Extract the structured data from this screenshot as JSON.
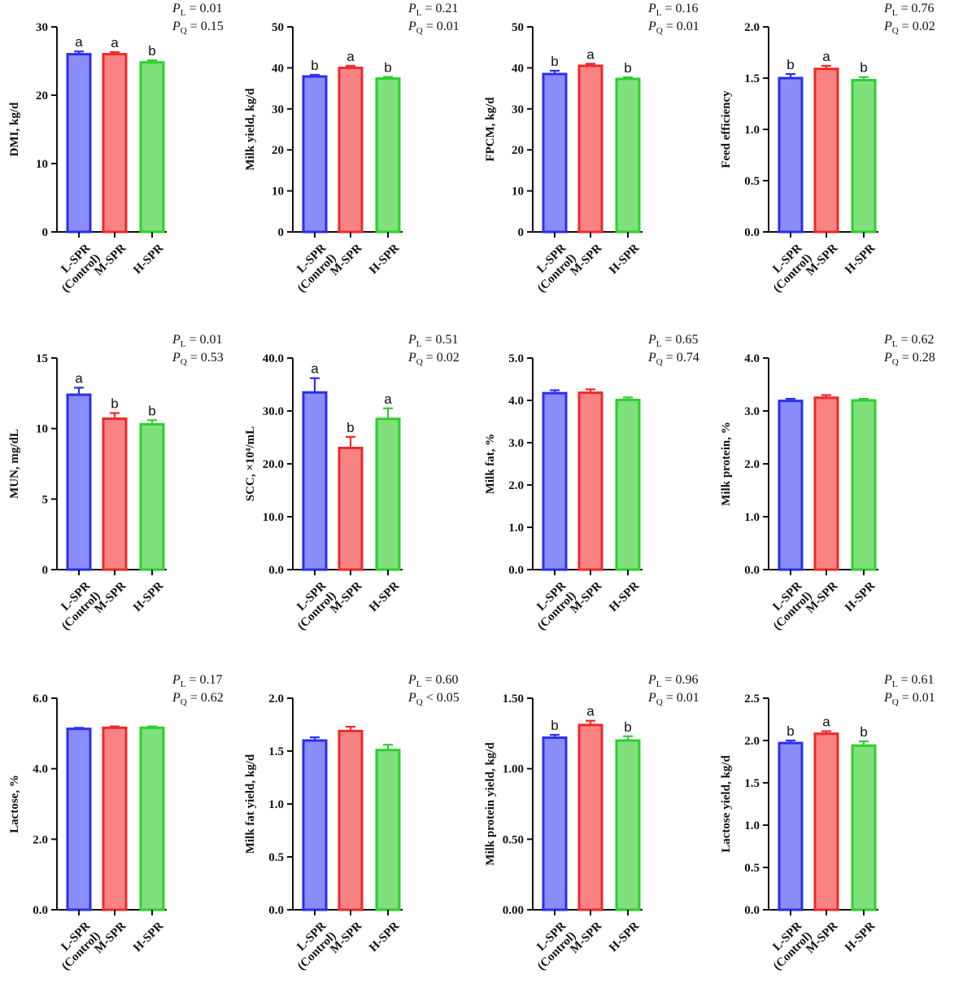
{
  "colors": {
    "low": "#2a2ef0",
    "mid": "#f0282a",
    "high": "#2ecf2e",
    "low_fill": "#8a8df8",
    "mid_fill": "#f98384",
    "high_fill": "#7fe07c",
    "axis": "#111111"
  },
  "chart_data": [
    {
      "type": "bar",
      "ylabel": "DMI,  kg/d",
      "categories": [
        "L-SPR|(Control)",
        "M-SPR",
        "H-SPR"
      ],
      "values": [
        26.0,
        26.0,
        24.8
      ],
      "errors": [
        0.4,
        0.3,
        0.3
      ],
      "letters": [
        "a",
        "a",
        "b"
      ],
      "ylim": [
        0,
        30
      ],
      "yticks": [
        "0",
        "10",
        "20",
        "30"
      ],
      "p_values": [
        "= 0.01",
        "= 0.15"
      ]
    },
    {
      "type": "bar",
      "ylabel": "Milk yield, kg/d",
      "categories": [
        "L-SPR|(Control)",
        "M-SPR",
        "H-SPR"
      ],
      "values": [
        37.9,
        40.0,
        37.4
      ],
      "errors": [
        0.4,
        0.5,
        0.4
      ],
      "letters": [
        "b",
        "a",
        "b"
      ],
      "ylim": [
        0,
        50
      ],
      "yticks": [
        "0",
        "10",
        "20",
        "30",
        "40",
        "50"
      ],
      "p_values": [
        "= 0.21",
        "= 0.01"
      ]
    },
    {
      "type": "bar",
      "ylabel": "FPCM, kg/d",
      "categories": [
        "L-SPR|(Control)",
        "M-SPR",
        "H-SPR"
      ],
      "values": [
        38.5,
        40.5,
        37.3
      ],
      "errors": [
        0.8,
        0.5,
        0.4
      ],
      "letters": [
        "b",
        "a",
        "b"
      ],
      "ylim": [
        0,
        50
      ],
      "yticks": [
        "0",
        "10",
        "20",
        "30",
        "40",
        "50"
      ],
      "p_values": [
        "= 0.16",
        "= 0.01"
      ]
    },
    {
      "type": "bar",
      "ylabel": "Feed efficiency",
      "categories": [
        "L-SPR|(Control)",
        "M-SPR",
        "H-SPR"
      ],
      "values": [
        1.5,
        1.59,
        1.48
      ],
      "errors": [
        0.04,
        0.03,
        0.03
      ],
      "letters": [
        "b",
        "a",
        "b"
      ],
      "ylim": [
        0,
        2.0
      ],
      "yticks": [
        "0.0",
        "0.5",
        "1.0",
        "1.5",
        "2.0"
      ],
      "p_values": [
        "= 0.76",
        "= 0.02"
      ]
    },
    {
      "type": "bar",
      "ylabel": "MUN, mg/dL",
      "categories": [
        "L-SPR|(Control)",
        "M-SPR",
        "H-SPR"
      ],
      "values": [
        12.4,
        10.7,
        10.3
      ],
      "errors": [
        0.5,
        0.4,
        0.3
      ],
      "letters": [
        "a",
        "b",
        "b"
      ],
      "ylim": [
        0,
        15
      ],
      "yticks": [
        "0",
        "5",
        "10",
        "15"
      ],
      "p_values": [
        "= 0.01",
        "= 0.53"
      ]
    },
    {
      "type": "bar",
      "ylabel": "SCC, ×10⁴/mL",
      "categories": [
        "L-SPR|(Control)",
        "M-SPR",
        "H-SPR"
      ],
      "values": [
        33.5,
        23.0,
        28.5
      ],
      "errors": [
        2.7,
        2.1,
        2.0
      ],
      "letters": [
        "a",
        "b",
        "a"
      ],
      "ylim": [
        0,
        40
      ],
      "yticks": [
        "0.0",
        "10.0",
        "20.0",
        "30.0",
        "40.0"
      ],
      "p_values": [
        "= 0.51",
        "= 0.02"
      ]
    },
    {
      "type": "bar",
      "ylabel": "Milk fat, %",
      "categories": [
        "L-SPR|(Control)",
        "M-SPR",
        "H-SPR"
      ],
      "values": [
        4.17,
        4.18,
        4.01
      ],
      "errors": [
        0.07,
        0.08,
        0.06
      ],
      "letters": [
        "",
        "",
        ""
      ],
      "ylim": [
        0,
        5.0
      ],
      "yticks": [
        "0.0",
        "1.0",
        "2.0",
        "3.0",
        "4.0",
        "5.0"
      ],
      "p_values": [
        "= 0.65",
        "= 0.74"
      ]
    },
    {
      "type": "bar",
      "ylabel": "Milk protein, %",
      "categories": [
        "L-SPR|(Control)",
        "M-SPR",
        "H-SPR"
      ],
      "values": [
        3.19,
        3.25,
        3.2
      ],
      "errors": [
        0.04,
        0.05,
        0.03
      ],
      "letters": [
        "",
        "",
        ""
      ],
      "ylim": [
        0,
        4.0
      ],
      "yticks": [
        "0.0",
        "1.0",
        "2.0",
        "3.0",
        "4.0"
      ],
      "p_values": [
        "= 0.62",
        "= 0.28"
      ]
    },
    {
      "type": "bar",
      "ylabel": "Lactose, %",
      "categories": [
        "L-SPR|(Control)",
        "M-SPR",
        "H-SPR"
      ],
      "values": [
        5.13,
        5.16,
        5.16
      ],
      "errors": [
        0.03,
        0.04,
        0.04
      ],
      "letters": [
        "",
        "",
        ""
      ],
      "ylim": [
        0,
        6.0
      ],
      "yticks": [
        "0.0",
        "2.0",
        "4.0",
        "6.0"
      ],
      "p_values": [
        "= 0.17",
        "= 0.62"
      ]
    },
    {
      "type": "bar",
      "ylabel": "Milk fat yield,  kg/d",
      "categories": [
        "L-SPR|(Control)",
        "M-SPR",
        "H-SPR"
      ],
      "values": [
        1.6,
        1.69,
        1.51
      ],
      "errors": [
        0.03,
        0.04,
        0.05
      ],
      "letters": [
        "",
        "",
        ""
      ],
      "ylim": [
        0,
        2.0
      ],
      "yticks": [
        "0.0",
        "0.5",
        "1.0",
        "1.5",
        "2.0"
      ],
      "p_values": [
        "= 0.60",
        "< 0.05"
      ]
    },
    {
      "type": "bar",
      "ylabel": "Milk protein yield, kg/d",
      "categories": [
        "L-SPR|(Control)",
        "M-SPR",
        "H-SPR"
      ],
      "values": [
        1.22,
        1.31,
        1.2
      ],
      "errors": [
        0.02,
        0.03,
        0.03
      ],
      "letters": [
        "b",
        "a",
        "b"
      ],
      "ylim": [
        0,
        1.5
      ],
      "yticks": [
        "0.00",
        "0.50",
        "1.00",
        "1.50"
      ],
      "p_values": [
        "= 0.96",
        "= 0.01"
      ]
    },
    {
      "type": "bar",
      "ylabel": "Lactose yield, kg/d",
      "categories": [
        "L-SPR|(Control)",
        "M-SPR",
        "H-SPR"
      ],
      "values": [
        1.97,
        2.08,
        1.94
      ],
      "errors": [
        0.03,
        0.03,
        0.05
      ],
      "letters": [
        "b",
        "a",
        "b"
      ],
      "ylim": [
        0,
        2.5
      ],
      "yticks": [
        "0.0",
        "0.5",
        "1.0",
        "1.5",
        "2.0",
        "2.5"
      ],
      "p_values": [
        "= 0.61",
        "= 0.01"
      ]
    }
  ]
}
